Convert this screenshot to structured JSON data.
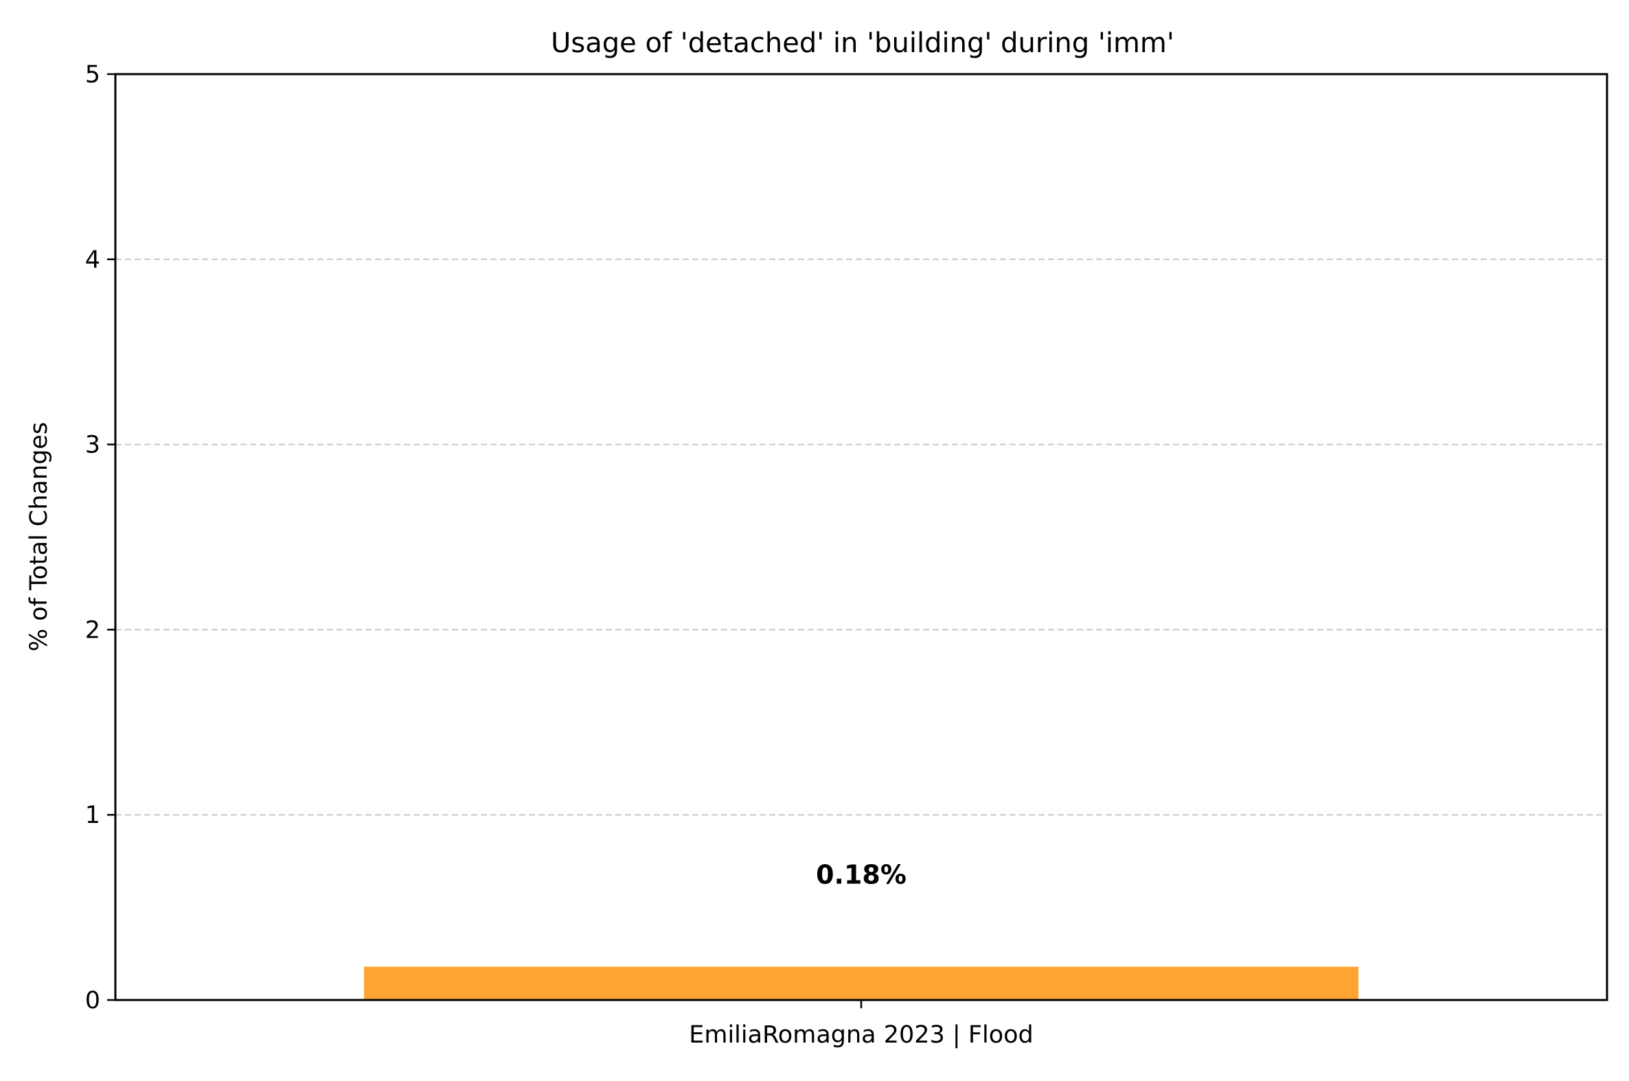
{
  "chart_data": {
    "type": "bar",
    "title": "Usage of 'detached' in 'building' during 'imm'",
    "xlabel": "",
    "ylabel": "% of Total Changes",
    "categories": [
      "EmiliaRomagna 2023 | Flood"
    ],
    "values": [
      0.18
    ],
    "value_labels": [
      "0.18%"
    ],
    "ylim": [
      0,
      5
    ],
    "yticks": [
      "0",
      "1",
      "2",
      "3",
      "4",
      "5"
    ],
    "grid": "y dashed",
    "legend": "none",
    "bar_color": "#ffa433",
    "grid_color": "#c8c8c8"
  }
}
